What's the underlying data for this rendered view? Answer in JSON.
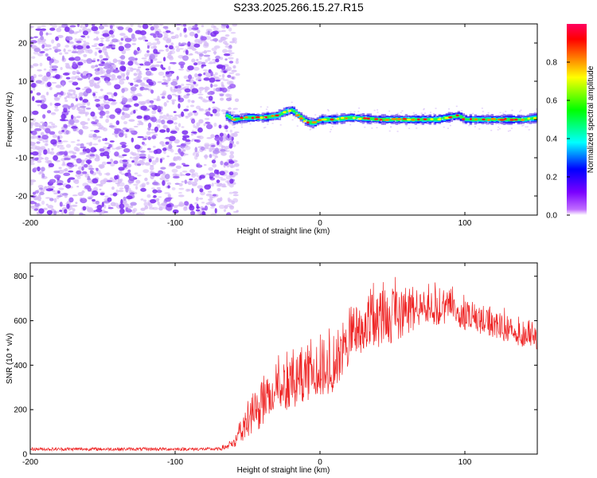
{
  "title": "S233.2025.266.15.27.R15",
  "colors": {
    "axis": "#000000",
    "snr_line": "#ee2222",
    "noise_dot": "#7a2cf0",
    "noise_dot_light": "#d7bdf7"
  },
  "chart_data": [
    {
      "type": "heatmap",
      "title": "",
      "xlabel": "Height of straight line (km)",
      "ylabel": "Frequency (Hz)",
      "xlim": [
        -200,
        150
      ],
      "ylim": [
        -25,
        25
      ],
      "xticks": [
        -200,
        -100,
        0,
        100
      ],
      "xtick_labels": [
        "-200",
        "-100",
        "0",
        "100"
      ],
      "yticks": [
        20,
        10,
        0,
        -10,
        -20
      ],
      "ytick_labels": [
        "20",
        "10",
        "0",
        "-10",
        "-20"
      ],
      "colorbar": {
        "label": "Normalized spectral amplitude",
        "range": [
          0,
          1
        ],
        "ticks": [
          0.0,
          0.2,
          0.4,
          0.6,
          0.8
        ],
        "tick_labels": [
          "0.0",
          "0.2",
          "0.4",
          "0.6",
          "0.8"
        ],
        "colormap": [
          "#7a00ff",
          "#0000ff",
          "#00ffff",
          "#00ff00",
          "#ffff00",
          "#ff8000",
          "#ff0000",
          "#ff0060"
        ]
      },
      "regions": [
        {
          "description": "broadband low-amplitude noise",
          "x": [
            -200,
            -60
          ],
          "freq": [
            -25,
            25
          ],
          "amplitude": [
            0.0,
            0.1
          ]
        },
        {
          "description": "narrow tone ridge",
          "x": [
            -60,
            150
          ],
          "center_freq_hz": 0.5,
          "amplitude": [
            0.3,
            1.0
          ]
        }
      ],
      "ridge": {
        "x": [
          -75,
          -65,
          -60,
          -50,
          -40,
          -30,
          -25,
          -20,
          -15,
          -10,
          -5,
          0,
          10,
          20,
          40,
          60,
          80,
          95,
          100,
          120,
          140,
          150
        ],
        "freq": [
          2,
          1,
          0,
          0.5,
          0.5,
          1,
          2,
          2.5,
          1,
          -0.5,
          -1,
          0,
          0,
          0.5,
          0,
          0,
          0,
          1,
          0,
          0,
          0,
          0.5
        ]
      }
    },
    {
      "type": "line",
      "title": "",
      "xlabel": "Height of straight line (km)",
      "ylabel": "SNR (10 * v/v)",
      "xlim": [
        -200,
        150
      ],
      "ylim": [
        0,
        860
      ],
      "xticks": [
        -200,
        -100,
        0,
        100
      ],
      "xtick_labels": [
        "-200",
        "-100",
        "0",
        "100"
      ],
      "yticks": [
        0,
        200,
        400,
        600,
        800
      ],
      "ytick_labels": [
        "0",
        "200",
        "400",
        "600",
        "800"
      ],
      "series": [
        {
          "name": "",
          "x": [
            -200,
            -150,
            -100,
            -70,
            -62,
            -55,
            -50,
            -40,
            -30,
            -20,
            -10,
            0,
            10,
            20,
            30,
            40,
            50,
            60,
            70,
            80,
            90,
            100,
            110,
            120,
            130,
            140,
            150
          ],
          "y_min": [
            15,
            15,
            15,
            15,
            20,
            40,
            80,
            120,
            180,
            200,
            240,
            260,
            280,
            400,
            450,
            480,
            500,
            540,
            570,
            580,
            590,
            560,
            540,
            520,
            500,
            480,
            470
          ],
          "y_max": [
            30,
            30,
            30,
            30,
            60,
            200,
            280,
            380,
            450,
            480,
            520,
            550,
            600,
            700,
            760,
            800,
            820,
            820,
            800,
            780,
            760,
            720,
            700,
            680,
            650,
            620,
            600
          ]
        }
      ]
    }
  ]
}
